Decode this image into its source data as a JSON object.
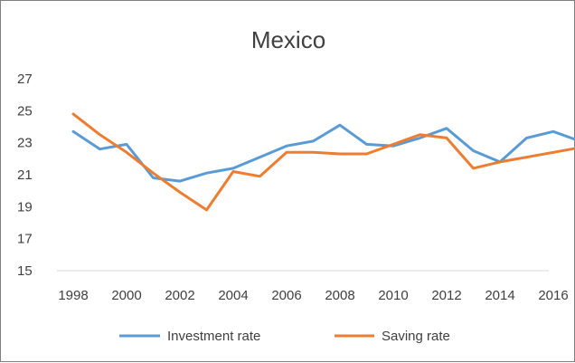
{
  "chart_data": {
    "type": "line",
    "title": "Mexico",
    "xlabel": "",
    "ylabel": "",
    "x": [
      1998,
      1999,
      2000,
      2001,
      2002,
      2003,
      2004,
      2005,
      2006,
      2007,
      2008,
      2009,
      2010,
      2011,
      2012,
      2013,
      2014,
      2015,
      2016,
      2017
    ],
    "x_tick_labels": [
      "1998",
      "2000",
      "2002",
      "2004",
      "2006",
      "2008",
      "2010",
      "2012",
      "2014",
      "2016"
    ],
    "y_tick_labels": [
      "15",
      "17",
      "19",
      "21",
      "23",
      "25",
      "27"
    ],
    "ylim": [
      15,
      27
    ],
    "grid": false,
    "legend_position": "bottom",
    "series": [
      {
        "name": "Investment rate",
        "color": "#5b9bd5",
        "values": [
          23.7,
          22.6,
          22.9,
          20.8,
          20.6,
          21.1,
          21.4,
          22.1,
          22.8,
          23.1,
          24.1,
          22.9,
          22.8,
          23.3,
          23.9,
          22.5,
          21.8,
          23.3,
          23.7,
          23.1
        ]
      },
      {
        "name": "Saving rate",
        "color": "#ed7d31",
        "values": [
          24.8,
          23.5,
          22.4,
          21.1,
          19.9,
          18.8,
          21.2,
          20.9,
          22.4,
          22.4,
          22.3,
          22.3,
          22.9,
          23.5,
          23.3,
          21.4,
          21.8,
          22.1,
          22.4,
          22.7
        ]
      }
    ]
  }
}
